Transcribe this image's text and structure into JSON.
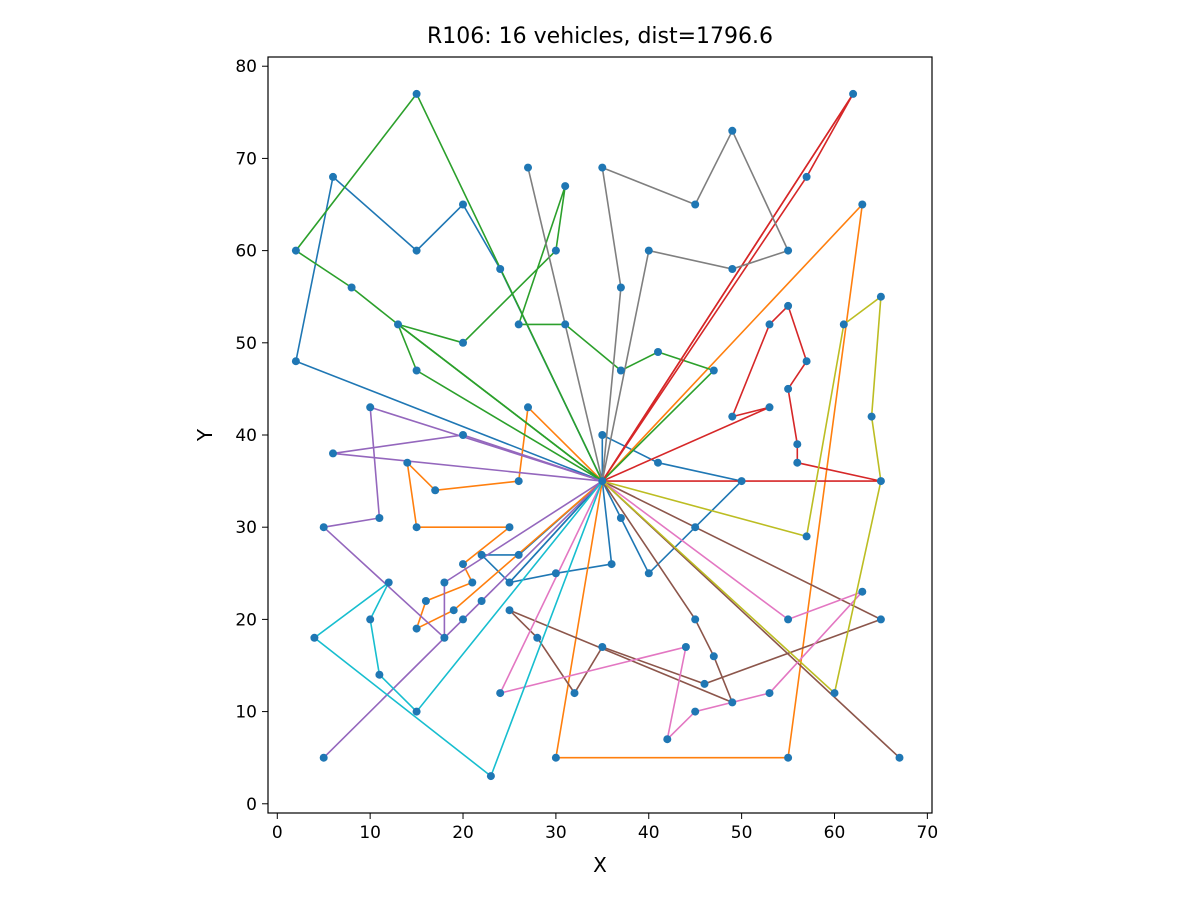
{
  "chart_data": {
    "type": "scatter",
    "title": "R106: 16 vehicles, dist=1796.6",
    "xlabel": "X",
    "ylabel": "Y",
    "xlim": [
      -1,
      70.5
    ],
    "ylim": [
      -1,
      81
    ],
    "xticks": [
      0,
      10,
      20,
      30,
      40,
      50,
      60,
      70
    ],
    "yticks": [
      0,
      10,
      20,
      30,
      40,
      50,
      60,
      70,
      80
    ],
    "grid": false,
    "point_color": "#1f77b4",
    "depot": [
      35,
      35
    ],
    "routes": [
      {
        "color": "#1f77b4",
        "stops": [
          [
            35,
            35
          ],
          [
            25,
            24
          ],
          [
            22,
            27
          ],
          [
            26,
            27
          ],
          [
            35,
            35
          ]
        ]
      },
      {
        "color": "#1f77b4",
        "stops": [
          [
            35,
            35
          ],
          [
            35,
            40
          ],
          [
            41,
            37
          ],
          [
            50,
            35
          ],
          [
            45,
            30
          ],
          [
            40,
            25
          ],
          [
            37,
            31
          ],
          [
            35,
            35
          ]
        ]
      },
      {
        "color": "#1f77b4",
        "stops": [
          [
            35,
            35
          ],
          [
            2,
            48
          ],
          [
            6,
            68
          ],
          [
            15,
            60
          ],
          [
            20,
            65
          ],
          [
            24,
            58
          ],
          [
            35,
            35
          ]
        ]
      },
      {
        "color": "#1f77b4",
        "stops": [
          [
            35,
            35
          ],
          [
            36,
            26
          ],
          [
            30,
            25
          ],
          [
            25,
            24
          ],
          [
            35,
            35
          ]
        ]
      },
      {
        "color": "#ff7f0e",
        "stops": [
          [
            35,
            35
          ],
          [
            27,
            43
          ],
          [
            26,
            35
          ],
          [
            17,
            34
          ],
          [
            14,
            37
          ],
          [
            15,
            30
          ],
          [
            25,
            30
          ],
          [
            20,
            26
          ],
          [
            21,
            24
          ],
          [
            16,
            22
          ],
          [
            15,
            19
          ],
          [
            19,
            21
          ],
          [
            35,
            35
          ]
        ]
      },
      {
        "color": "#ff7f0e",
        "stops": [
          [
            35,
            35
          ],
          [
            63,
            65
          ],
          [
            55,
            5
          ],
          [
            30,
            5
          ],
          [
            35,
            35
          ]
        ]
      },
      {
        "color": "#2ca02c",
        "stops": [
          [
            35,
            35
          ],
          [
            15,
            77
          ],
          [
            2,
            60
          ],
          [
            8,
            56
          ],
          [
            13,
            52
          ],
          [
            35,
            35
          ]
        ]
      },
      {
        "color": "#2ca02c",
        "stops": [
          [
            35,
            35
          ],
          [
            13,
            52
          ],
          [
            20,
            50
          ],
          [
            30,
            60
          ],
          [
            31,
            67
          ],
          [
            26,
            52
          ],
          [
            31,
            52
          ],
          [
            37,
            47
          ],
          [
            41,
            49
          ],
          [
            47,
            47
          ],
          [
            35,
            35
          ]
        ]
      },
      {
        "color": "#2ca02c",
        "stops": [
          [
            35,
            35
          ],
          [
            15,
            47
          ],
          [
            13,
            52
          ],
          [
            35,
            35
          ]
        ]
      },
      {
        "color": "#d62728",
        "stops": [
          [
            35,
            35
          ],
          [
            62,
            77
          ],
          [
            57,
            68
          ],
          [
            35,
            35
          ]
        ]
      },
      {
        "color": "#d62728",
        "stops": [
          [
            35,
            35
          ],
          [
            62,
            77
          ],
          [
            35,
            35
          ]
        ]
      },
      {
        "color": "#d62728",
        "stops": [
          [
            35,
            35
          ],
          [
            53,
            43
          ],
          [
            49,
            42
          ],
          [
            53,
            52
          ],
          [
            55,
            54
          ],
          [
            57,
            48
          ],
          [
            55,
            45
          ],
          [
            56,
            39
          ],
          [
            56,
            37
          ],
          [
            65,
            35
          ],
          [
            35,
            35
          ]
        ]
      },
      {
        "color": "#9467bd",
        "stops": [
          [
            35,
            35
          ],
          [
            6,
            38
          ],
          [
            20,
            40
          ],
          [
            35,
            35
          ]
        ]
      },
      {
        "color": "#9467bd",
        "stops": [
          [
            35,
            35
          ],
          [
            10,
            43
          ],
          [
            11,
            31
          ],
          [
            5,
            30
          ],
          [
            18,
            18
          ],
          [
            18,
            24
          ],
          [
            35,
            35
          ]
        ]
      },
      {
        "color": "#9467bd",
        "stops": [
          [
            35,
            35
          ],
          [
            22,
            22
          ],
          [
            5,
            5
          ],
          [
            20,
            20
          ],
          [
            35,
            35
          ]
        ]
      },
      {
        "color": "#8c564b",
        "stops": [
          [
            35,
            35
          ],
          [
            65,
            20
          ],
          [
            46,
            13
          ],
          [
            35,
            17
          ],
          [
            32,
            12
          ],
          [
            28,
            18
          ],
          [
            25,
            21
          ],
          [
            49,
            11
          ],
          [
            47,
            16
          ],
          [
            45,
            20
          ],
          [
            35,
            35
          ]
        ]
      },
      {
        "color": "#8c564b",
        "stops": [
          [
            35,
            35
          ],
          [
            67,
            5
          ],
          [
            35,
            35
          ]
        ]
      },
      {
        "color": "#e377c2",
        "stops": [
          [
            35,
            35
          ],
          [
            55,
            20
          ],
          [
            63,
            23
          ],
          [
            53,
            12
          ],
          [
            45,
            10
          ],
          [
            42,
            7
          ],
          [
            44,
            17
          ],
          [
            24,
            12
          ],
          [
            35,
            35
          ]
        ]
      },
      {
        "color": "#7f7f7f",
        "stops": [
          [
            35,
            35
          ],
          [
            27,
            69
          ],
          [
            35,
            35
          ]
        ]
      },
      {
        "color": "#7f7f7f",
        "stops": [
          [
            35,
            35
          ],
          [
            37,
            56
          ],
          [
            35,
            69
          ],
          [
            45,
            65
          ],
          [
            49,
            73
          ],
          [
            55,
            60
          ],
          [
            49,
            58
          ],
          [
            40,
            60
          ],
          [
            35,
            35
          ]
        ]
      },
      {
        "color": "#bcbd22",
        "stops": [
          [
            35,
            35
          ],
          [
            57,
            29
          ],
          [
            61,
            52
          ],
          [
            65,
            55
          ],
          [
            64,
            42
          ],
          [
            65,
            35
          ],
          [
            60,
            12
          ],
          [
            35,
            35
          ]
        ]
      },
      {
        "color": "#17becf",
        "stops": [
          [
            35,
            35
          ],
          [
            23,
            3
          ],
          [
            4,
            18
          ],
          [
            12,
            24
          ],
          [
            10,
            20
          ],
          [
            11,
            14
          ],
          [
            15,
            10
          ],
          [
            35,
            35
          ]
        ]
      }
    ]
  }
}
